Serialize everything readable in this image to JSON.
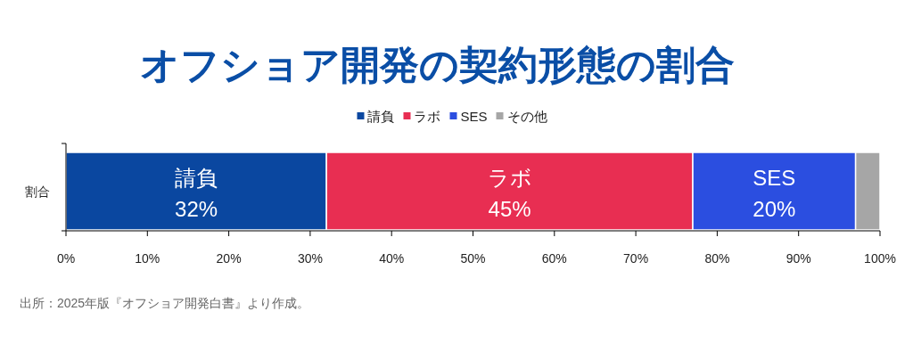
{
  "chart_data": {
    "type": "bar",
    "orientation": "horizontal",
    "stacked": true,
    "title": "オフショア開発の契約形態の割合",
    "categories": [
      "割合"
    ],
    "series": [
      {
        "name": "請負",
        "color": "#0a47a0",
        "values": [
          32
        ],
        "value_labels": [
          "32%"
        ]
      },
      {
        "name": "ラボ",
        "color": "#e82e52",
        "values": [
          45
        ],
        "value_labels": [
          "45%"
        ]
      },
      {
        "name": "SES",
        "color": "#2b4ee0",
        "values": [
          20
        ],
        "value_labels": [
          "20%"
        ]
      },
      {
        "name": "その他",
        "color": "#a6a6a6",
        "values": [
          3
        ],
        "value_labels": [
          null
        ]
      }
    ],
    "xlim": [
      0,
      100
    ],
    "xticks": [
      {
        "value": 0,
        "label": "0%"
      },
      {
        "value": 10,
        "label": "10%"
      },
      {
        "value": 20,
        "label": "20%"
      },
      {
        "value": 30,
        "label": "30%"
      },
      {
        "value": 40,
        "label": "40%"
      },
      {
        "value": 50,
        "label": "50%"
      },
      {
        "value": 60,
        "label": "60%"
      },
      {
        "value": 70,
        "label": "70%"
      },
      {
        "value": 80,
        "label": "80%"
      },
      {
        "value": 90,
        "label": "90%"
      },
      {
        "value": 100,
        "label": "100%"
      }
    ],
    "legend": "top",
    "annotations": [
      "出所：2025年版『オフショア開発白書』より作成。"
    ]
  }
}
